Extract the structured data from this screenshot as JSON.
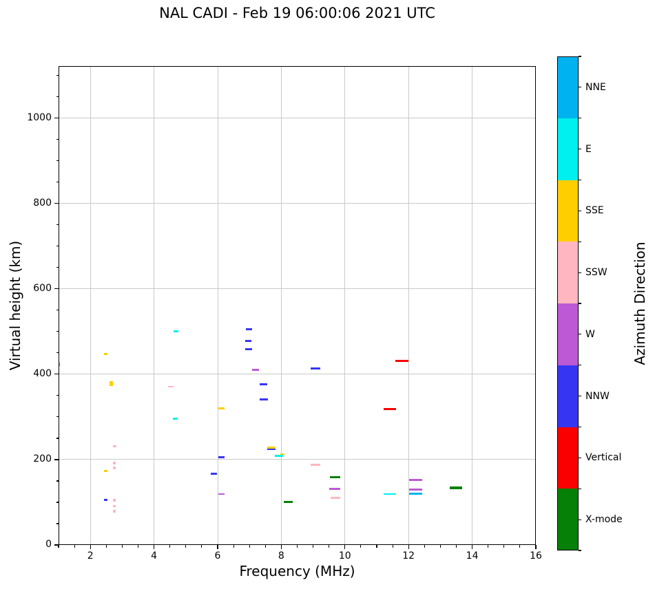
{
  "title": "NAL CADI - Feb 19 06:00:06 2021 UTC",
  "chart_data": {
    "type": "scatter",
    "title": "NAL CADI - Feb 19 06:00:06 2021 UTC",
    "xlabel": "Frequency (MHz)",
    "ylabel": "Virtual height (km)",
    "colorbar_label": "Azimuth Direction",
    "xlim": [
      1,
      16
    ],
    "ylim": [
      0,
      1122
    ],
    "xticks": [
      2,
      4,
      6,
      8,
      10,
      12,
      14,
      16
    ],
    "yticks": [
      0,
      200,
      400,
      600,
      800,
      1000
    ],
    "x_minor_step": 0.5,
    "y_minor_step": 50,
    "grid": true,
    "legend_position": "right-colorbar",
    "categories_top_to_bottom": [
      "NNE",
      "E",
      "SSE",
      "SSW",
      "W",
      "NNW",
      "Vertical",
      "X-mode"
    ],
    "colors": {
      "NNE": "#00b3f0",
      "E": "#00efef",
      "SSE": "#ffce00",
      "SSW": "#ffb6c1",
      "W": "#bd59d4",
      "NNW": "#3636f2",
      "Vertical": "#fa0000",
      "X-mode": "#078007"
    },
    "points": [
      {
        "x": 1.0,
        "y": 423,
        "dir": "NNE",
        "w": 3,
        "t": 5
      },
      {
        "x": 2.49,
        "y": 447,
        "dir": "SSE",
        "w": 5,
        "t": 3
      },
      {
        "x": 2.65,
        "y": 378,
        "dir": "SSE",
        "w": 5,
        "t": 7
      },
      {
        "x": 2.76,
        "y": 231,
        "dir": "SSW",
        "w": 5,
        "t": 3
      },
      {
        "x": 2.76,
        "y": 192,
        "dir": "SSW",
        "w": 4,
        "t": 4
      },
      {
        "x": 2.76,
        "y": 180,
        "dir": "SSW",
        "w": 4,
        "t": 4
      },
      {
        "x": 2.49,
        "y": 173,
        "dir": "SSE",
        "w": 5,
        "t": 3
      },
      {
        "x": 2.49,
        "y": 106,
        "dir": "NNW",
        "w": 5,
        "t": 3
      },
      {
        "x": 2.76,
        "y": 104,
        "dir": "SSW",
        "w": 4,
        "t": 4
      },
      {
        "x": 2.76,
        "y": 91,
        "dir": "SSW",
        "w": 4,
        "t": 3
      },
      {
        "x": 2.76,
        "y": 79,
        "dir": "SSW",
        "w": 4,
        "t": 4
      },
      {
        "x": 4.68,
        "y": 500,
        "dir": "E",
        "w": 7,
        "t": 3
      },
      {
        "x": 4.52,
        "y": 371,
        "dir": "SSW",
        "w": 8,
        "t": 2
      },
      {
        "x": 4.67,
        "y": 296,
        "dir": "E",
        "w": 7,
        "t": 3
      },
      {
        "x": 6.11,
        "y": 320,
        "dir": "SSE",
        "w": 9,
        "t": 3
      },
      {
        "x": 6.12,
        "y": 205,
        "dir": "NNW",
        "w": 9,
        "t": 3
      },
      {
        "x": 5.89,
        "y": 167,
        "dir": "NNW",
        "w": 9,
        "t": 3
      },
      {
        "x": 6.11,
        "y": 119,
        "dir": "W",
        "w": 9,
        "t": 2
      },
      {
        "x": 6.98,
        "y": 505,
        "dir": "NNW",
        "w": 9,
        "t": 3
      },
      {
        "x": 6.96,
        "y": 478,
        "dir": "NNW",
        "w": 9,
        "t": 3
      },
      {
        "x": 6.97,
        "y": 459,
        "dir": "NNW",
        "w": 10,
        "t": 3
      },
      {
        "x": 7.19,
        "y": 411,
        "dir": "W",
        "w": 10,
        "t": 3
      },
      {
        "x": 7.44,
        "y": 376,
        "dir": "NNW",
        "w": 11,
        "t": 3
      },
      {
        "x": 7.44,
        "y": 341,
        "dir": "NNW",
        "w": 12,
        "t": 3
      },
      {
        "x": 7.69,
        "y": 228,
        "dir": "SSE",
        "w": 12,
        "t": 3
      },
      {
        "x": 7.69,
        "y": 224,
        "dir": "NNW",
        "w": 12,
        "t": 2
      },
      {
        "x": 7.93,
        "y": 209,
        "dir": "E",
        "w": 12,
        "t": 3
      },
      {
        "x": 8.03,
        "y": 212,
        "dir": "SSE",
        "w": 6,
        "t": 2
      },
      {
        "x": 8.22,
        "y": 101,
        "dir": "X-mode",
        "w": 13,
        "t": 3
      },
      {
        "x": 9.08,
        "y": 413,
        "dir": "NNW",
        "w": 14,
        "t": 3
      },
      {
        "x": 9.08,
        "y": 188,
        "dir": "SSW",
        "w": 14,
        "t": 3
      },
      {
        "x": 9.7,
        "y": 159,
        "dir": "X-mode",
        "w": 15,
        "t": 3
      },
      {
        "x": 9.69,
        "y": 131,
        "dir": "W",
        "w": 16,
        "t": 3
      },
      {
        "x": 9.7,
        "y": 111,
        "dir": "SSW",
        "w": 14,
        "t": 3
      },
      {
        "x": 11.42,
        "y": 319,
        "dir": "Vertical",
        "w": 18,
        "t": 3
      },
      {
        "x": 11.42,
        "y": 119,
        "dir": "E",
        "w": 18,
        "t": 2
      },
      {
        "x": 11.78,
        "y": 431,
        "dir": "Vertical",
        "w": 19,
        "t": 3
      },
      {
        "x": 12.22,
        "y": 152,
        "dir": "W",
        "w": 19,
        "t": 3
      },
      {
        "x": 12.23,
        "y": 129,
        "dir": "W",
        "w": 19,
        "t": 3
      },
      {
        "x": 12.22,
        "y": 120,
        "dir": "NNE",
        "w": 19,
        "t": 3
      },
      {
        "x": 13.48,
        "y": 134,
        "dir": "X-mode",
        "w": 18,
        "t": 4
      }
    ]
  }
}
